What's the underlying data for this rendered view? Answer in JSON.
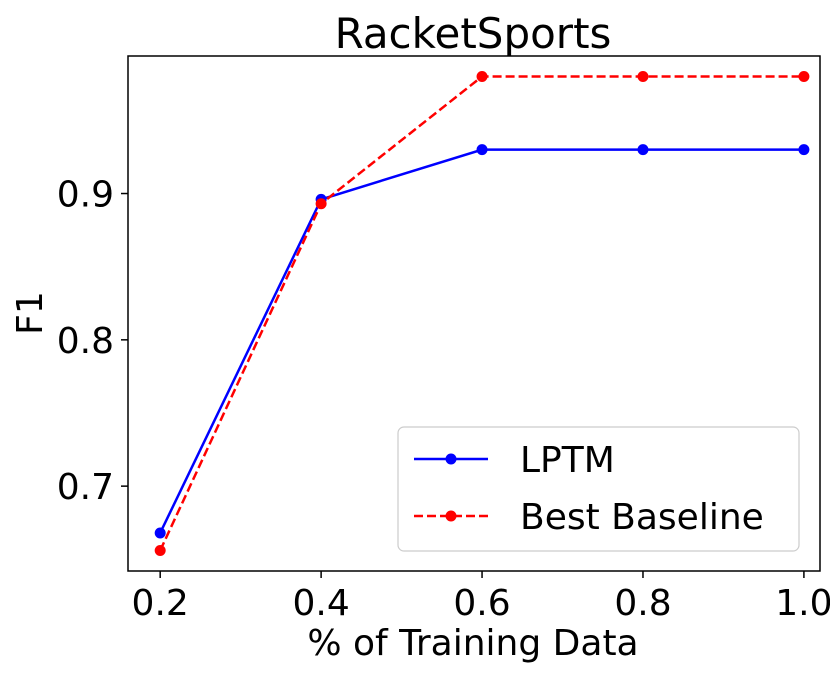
{
  "chart_data": {
    "type": "line",
    "title": "RacketSports",
    "xlabel": "% of Training Data",
    "ylabel": "F1",
    "x": [
      0.2,
      0.4,
      0.6,
      0.8,
      1.0
    ],
    "xticks": [
      "0.2",
      "0.4",
      "0.6",
      "0.8",
      "1.0"
    ],
    "yticks": [
      "0.7",
      "0.8",
      "0.9"
    ],
    "xlim": [
      0.16,
      1.02
    ],
    "ylim": [
      0.642,
      0.994
    ],
    "grid": false,
    "legend_position": "bottom-right",
    "series": [
      {
        "name": "LPTM",
        "values": [
          0.668,
          0.896,
          0.93,
          0.93,
          0.93
        ],
        "color": "#0000ff",
        "dash": "solid",
        "marker": "circle"
      },
      {
        "name": "Best Baseline",
        "values": [
          0.656,
          0.893,
          0.98,
          0.98,
          0.98
        ],
        "color": "#ff0000",
        "dash": "dashed",
        "marker": "circle"
      }
    ]
  }
}
